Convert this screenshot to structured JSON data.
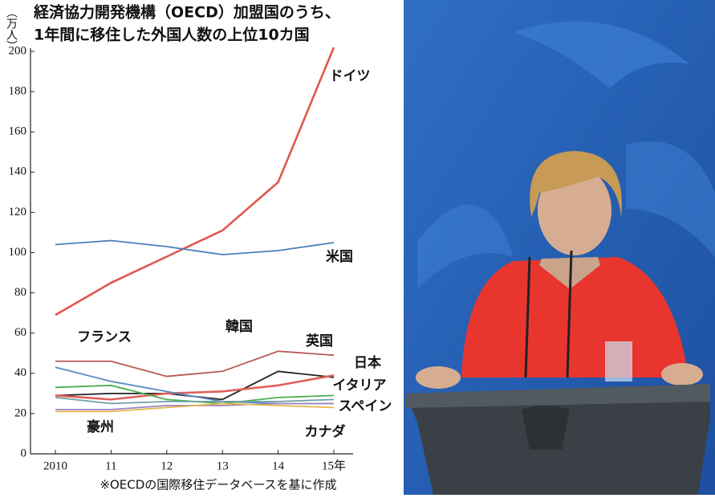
{
  "chart_data": {
    "type": "line",
    "title": [
      "経済協力開発機構（OECD）加盟国のうち、",
      "1年間に移住した外国人数の上位10カ国"
    ],
    "y_label": "（万人）",
    "note": "※OECDの国際移住データベースを基に作成",
    "categories": [
      "2010",
      "11",
      "12",
      "13",
      "14",
      "15年"
    ],
    "ylim": [
      0,
      200
    ],
    "yticks": [
      0,
      20,
      40,
      60,
      80,
      100,
      120,
      140,
      160,
      180,
      200
    ],
    "series": [
      {
        "name": "ドイツ",
        "color": "#e0574c",
        "values": [
          69,
          85,
          98,
          111,
          135,
          202
        ]
      },
      {
        "name": "米国",
        "color": "#4a80b8",
        "values": [
          104,
          106,
          103,
          99,
          101,
          105
        ]
      },
      {
        "name": "英国",
        "color": "#b45a52",
        "values": [
          46,
          46,
          38.5,
          41,
          51,
          49
        ]
      },
      {
        "name": "韓国",
        "color": "#222222",
        "values": [
          29,
          30,
          30,
          27,
          41,
          38
        ]
      },
      {
        "name": "日本",
        "color": "#e0605a",
        "values": [
          29,
          27,
          30,
          31,
          34,
          39
        ]
      },
      {
        "name": "イタリア",
        "color": "#5b8cc4",
        "values": [
          43,
          36,
          31,
          26,
          25,
          25
        ]
      },
      {
        "name": "スペイン",
        "color": "#4caf50",
        "values": [
          33,
          34,
          27,
          25,
          28,
          29
        ]
      },
      {
        "name": "カナダ",
        "color": "#6f9fa3",
        "values": [
          28,
          25,
          26,
          26,
          26,
          27
        ]
      },
      {
        "name": "フランス",
        "color": "#9b84c2",
        "values": [
          22,
          22,
          24,
          24,
          25,
          25
        ]
      },
      {
        "name": "豪州",
        "color": "#e6b64a",
        "values": [
          21,
          21,
          23,
          25,
          24,
          23
        ]
      }
    ]
  }
}
